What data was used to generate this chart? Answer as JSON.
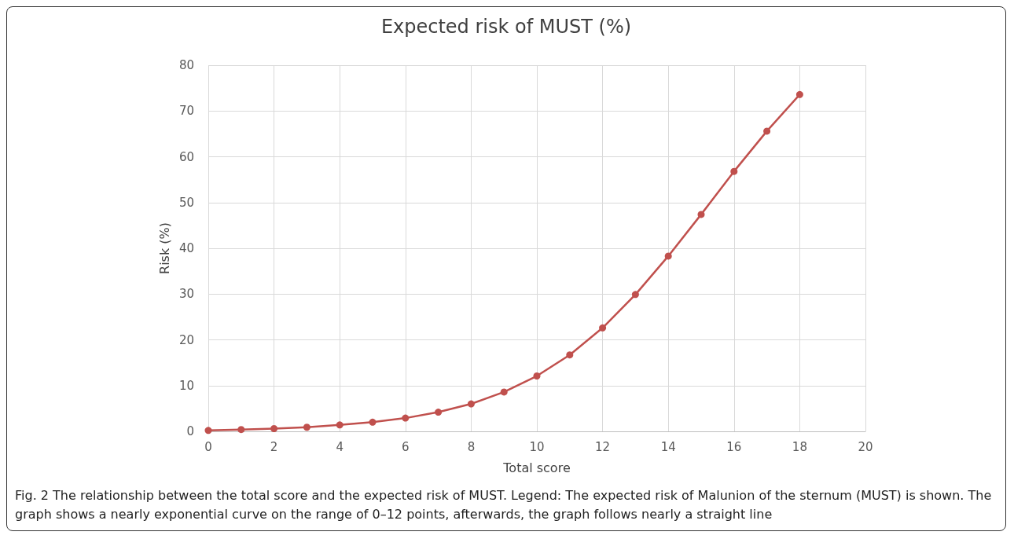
{
  "chart_data": {
    "type": "line",
    "title": "Expected risk of MUST (%)",
    "xlabel": "Total score",
    "ylabel": "Risk (%)",
    "x": [
      0,
      1,
      2,
      3,
      4,
      5,
      6,
      7,
      8,
      9,
      10,
      11,
      12,
      13,
      14,
      15,
      16,
      17,
      18
    ],
    "series": [
      {
        "color": "#c0504d",
        "values": [
          0.2,
          0.4,
          0.6,
          0.9,
          1.4,
          2.0,
          2.9,
          4.2,
          6.0,
          8.6,
          12.1,
          16.7,
          22.6,
          29.9,
          38.3,
          47.4,
          56.8,
          65.6,
          73.6
        ]
      }
    ],
    "xlim": [
      0,
      20
    ],
    "xticks": [
      0,
      2,
      4,
      6,
      8,
      10,
      12,
      14,
      16,
      18,
      20
    ],
    "ylim": [
      0,
      80
    ],
    "yticks": [
      0,
      10,
      20,
      30,
      40,
      50,
      60,
      70,
      80
    ],
    "grid": true,
    "marker": "circle",
    "line_style": "solid",
    "annotations": [
      "Fig. 2 The relationship between the total score and the expected risk of MUST. Legend: The expected risk of Malunion of the sternum (MUST) is shown. The graph shows a nearly exponential curve on the range of 0–12 points, afterwards, the graph follows nearly a straight line"
    ]
  }
}
